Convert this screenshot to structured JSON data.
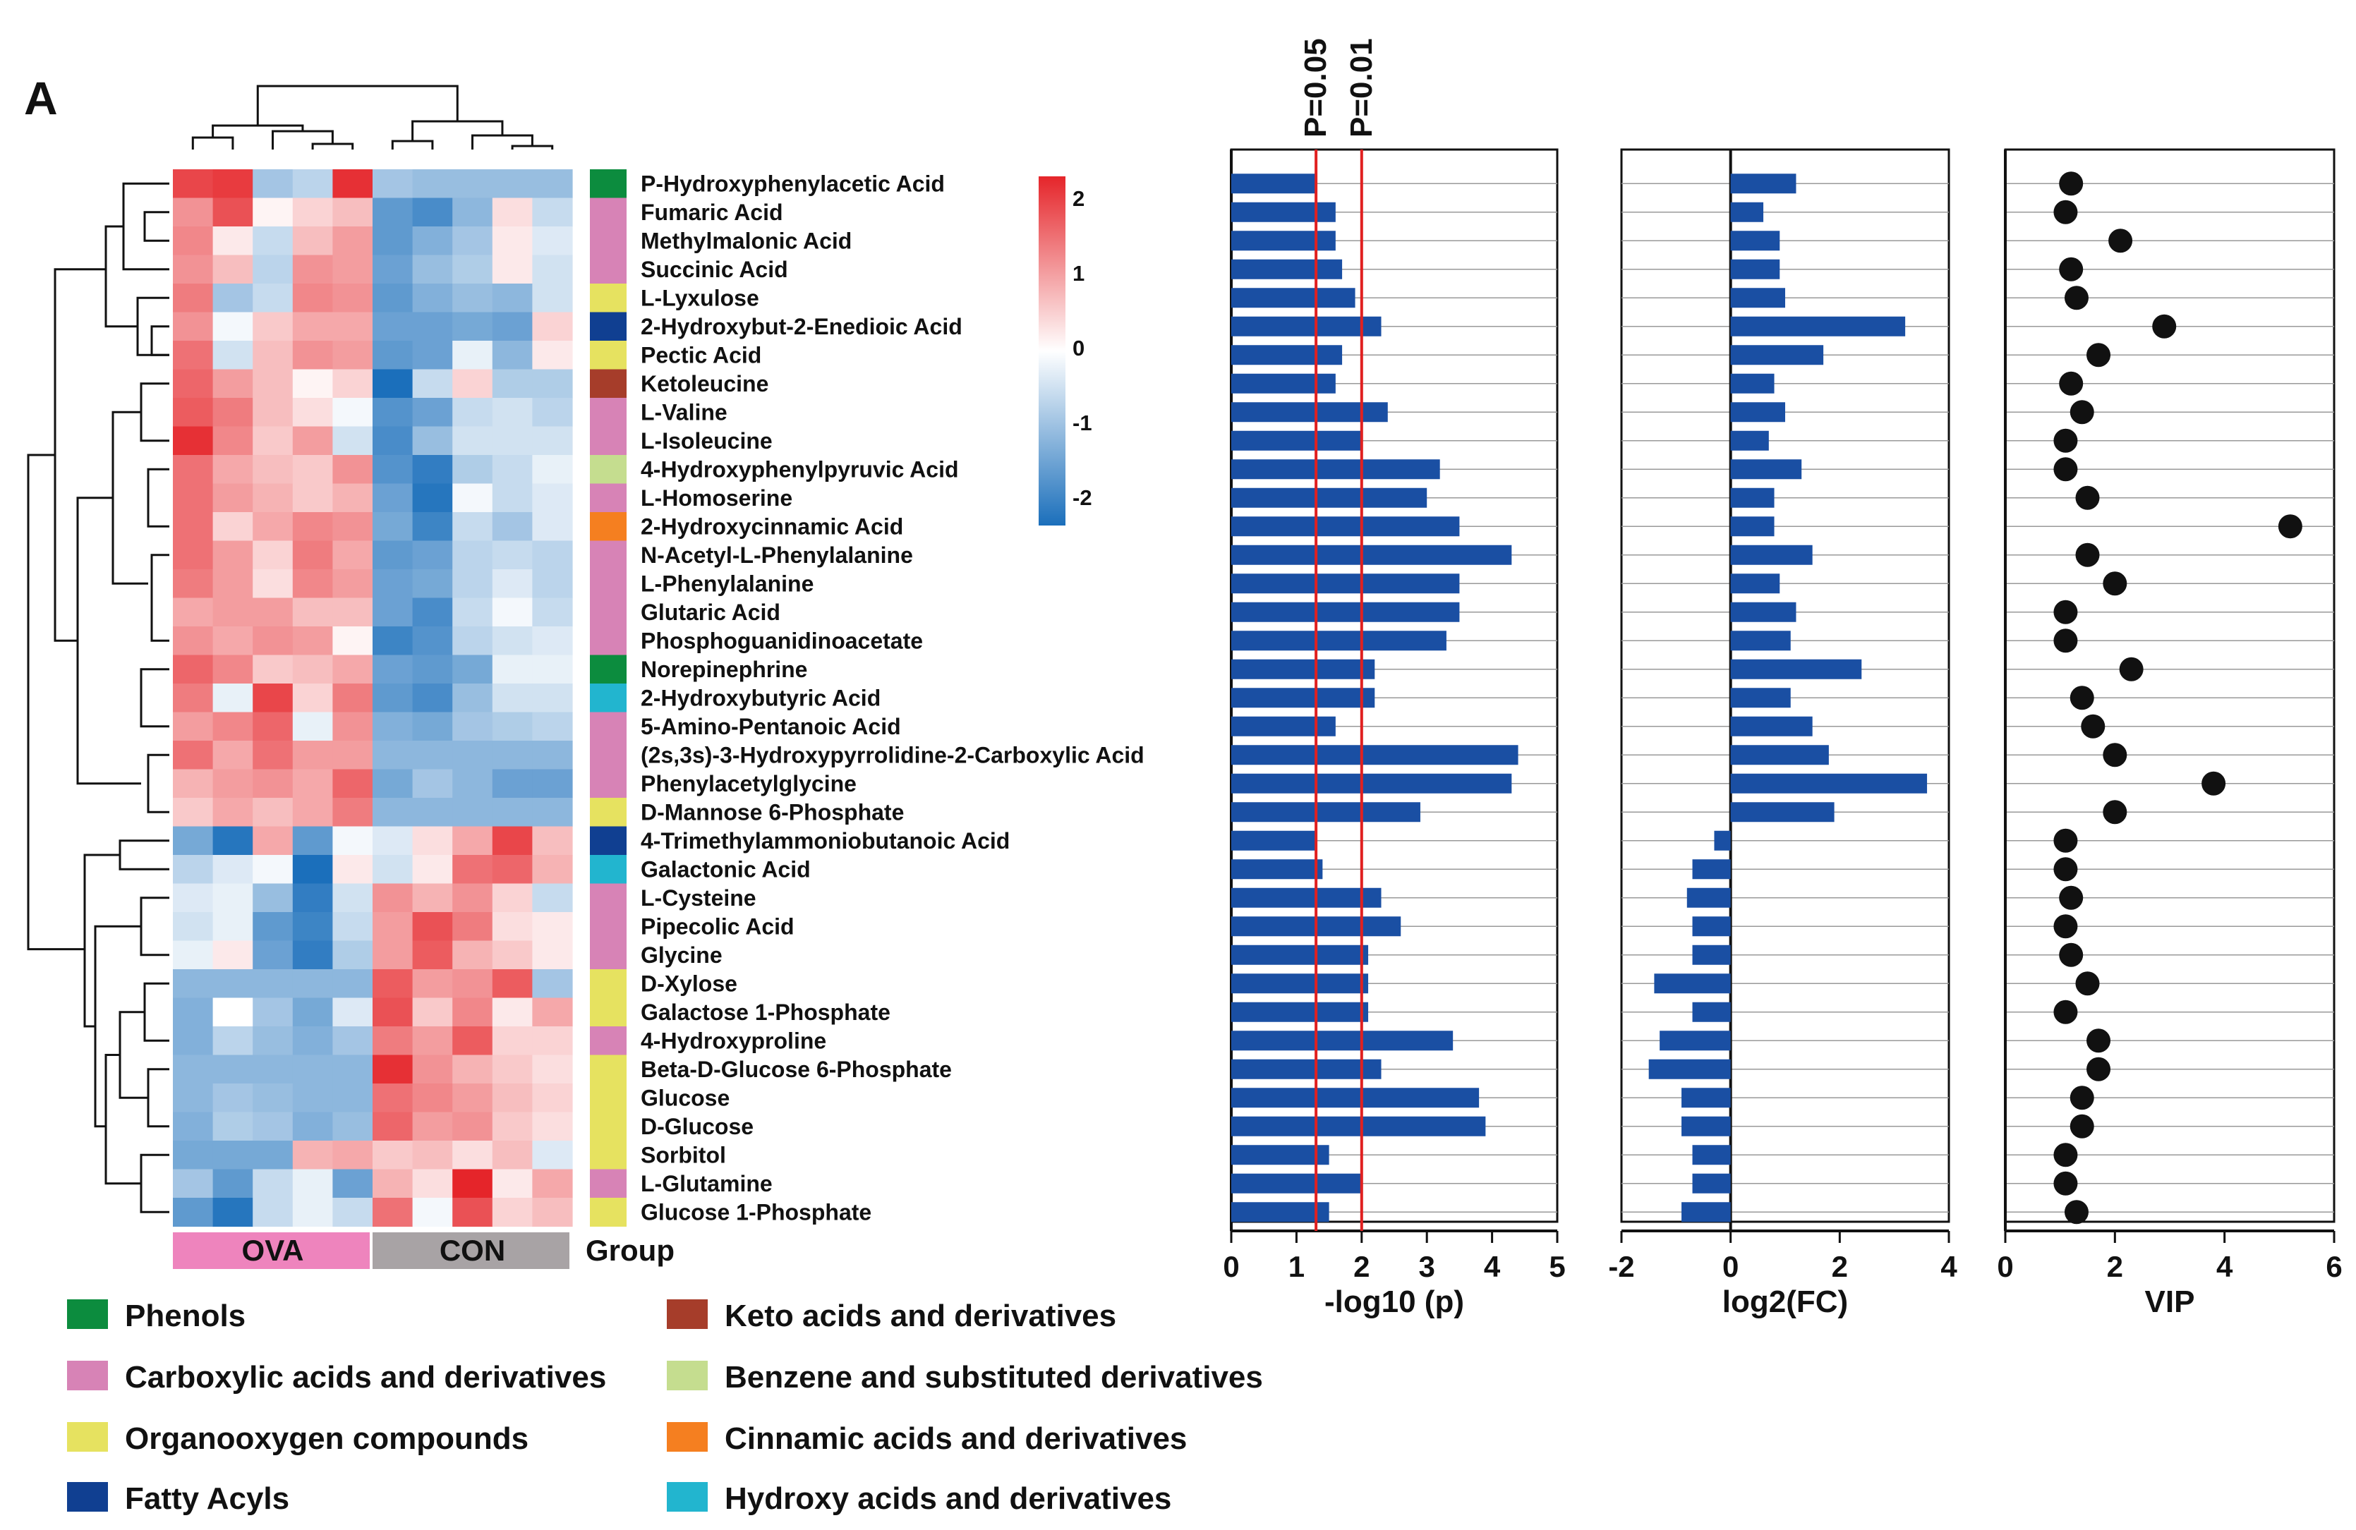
{
  "panel_label": "A",
  "metabolites": [
    "P-Hydroxyphenylacetic Acid",
    "Fumaric Acid",
    "Methylmalonic Acid",
    "Succinic Acid",
    "L-Lyxulose",
    "2-Hydroxybut-2-Enedioic Acid",
    "Pectic Acid",
    "Ketoleucine",
    "L-Valine",
    "L-Isoleucine",
    "4-Hydroxyphenylpyruvic Acid",
    "L-Homoserine",
    "2-Hydroxycinnamic Acid",
    "N-Acetyl-L-Phenylalanine",
    "L-Phenylalanine",
    "Glutaric Acid",
    "Phosphoguanidinoacetate",
    "Norepinephrine",
    "2-Hydroxybutyric Acid",
    "5-Amino-Pentanoic Acid",
    "(2s,3s)-3-Hydroxypyrrolidine-2-Carboxylic Acid",
    "Phenylacetylglycine",
    "D-Mannose 6-Phosphate",
    "4-Trimethylammoniobutanoic Acid",
    "Galactonic Acid",
    "L-Cysteine",
    "Pipecolic Acid",
    "Glycine",
    "D-Xylose",
    "Galactose 1-Phosphate",
    "4-Hydroxyproline",
    "Beta-D-Glucose 6-Phosphate",
    "Glucose",
    "D-Glucose",
    "Sorbitol",
    "L-Glutamine",
    "Glucose 1-Phosphate"
  ],
  "class_index": [
    0,
    1,
    1,
    1,
    2,
    3,
    2,
    4,
    1,
    1,
    5,
    1,
    6,
    1,
    1,
    1,
    1,
    0,
    7,
    1,
    1,
    1,
    2,
    3,
    7,
    1,
    1,
    1,
    2,
    2,
    1,
    2,
    2,
    2,
    2,
    1,
    2
  ],
  "legend": {
    "group_label": "Group",
    "classes": [
      {
        "name": "Phenols",
        "color": "#0c8c3e"
      },
      {
        "name": "Carboxylic acids and derivatives",
        "color": "#d783b6"
      },
      {
        "name": "Organooxygen compounds",
        "color": "#e6e260"
      },
      {
        "name": "Fatty Acyls",
        "color": "#103f91"
      },
      {
        "name": "Keto acids and derivatives",
        "color": "#a63d2a"
      },
      {
        "name": "Benzene and substituted derivatives",
        "color": "#c5dd8f"
      },
      {
        "name": "Cinnamic acids and derivatives",
        "color": "#f57f20"
      },
      {
        "name": "Hydroxy acids and derivatives",
        "color": "#22b5cf"
      }
    ]
  },
  "groups": [
    {
      "name": "OVA",
      "color": "#ee84bd"
    },
    {
      "name": "CON",
      "color": "#a8a3a5"
    }
  ],
  "chart_data": [
    {
      "type": "heatmap",
      "title": "",
      "columns_per_group": 5,
      "color_scale": {
        "min": -2,
        "max": 2,
        "ticks": [
          "2",
          "1",
          "0",
          "-1",
          "-2"
        ],
        "low_color": "#1b6fbb",
        "mid_color": "#ffffff",
        "high_color": "#e5252a"
      },
      "values": [
        [
          1.7,
          1.8,
          -0.8,
          -0.6,
          1.9,
          -0.8,
          -0.9,
          -0.9,
          -0.9,
          -0.9
        ],
        [
          1.0,
          1.6,
          0.1,
          0.4,
          0.6,
          -1.4,
          -1.6,
          -1.0,
          0.3,
          -0.5
        ],
        [
          1.1,
          0.2,
          -0.5,
          0.6,
          0.9,
          -1.4,
          -1.1,
          -0.8,
          0.2,
          -0.3
        ],
        [
          1.0,
          0.6,
          -0.6,
          1.0,
          0.9,
          -1.3,
          -0.9,
          -0.7,
          0.2,
          -0.4
        ],
        [
          1.2,
          -0.8,
          -0.5,
          1.1,
          1.0,
          -1.4,
          -1.1,
          -0.9,
          -1.0,
          -0.4
        ],
        [
          1.0,
          -0.1,
          0.5,
          0.8,
          0.8,
          -1.3,
          -1.3,
          -1.2,
          -1.3,
          0.4
        ],
        [
          1.3,
          -0.4,
          0.6,
          1.0,
          0.9,
          -1.4,
          -1.3,
          -0.2,
          -1.0,
          0.2
        ],
        [
          1.4,
          0.9,
          0.6,
          0.1,
          0.4,
          -2.0,
          -0.5,
          0.4,
          -0.7,
          -0.7
        ],
        [
          1.5,
          1.2,
          0.6,
          0.3,
          -0.1,
          -1.5,
          -1.3,
          -0.5,
          -0.4,
          -0.6
        ],
        [
          1.9,
          1.1,
          0.5,
          0.9,
          -0.4,
          -1.6,
          -0.9,
          -0.4,
          -0.4,
          -0.4
        ],
        [
          1.3,
          0.8,
          0.6,
          0.5,
          1.0,
          -1.5,
          -1.8,
          -0.7,
          -0.5,
          -0.2
        ],
        [
          1.3,
          0.9,
          0.7,
          0.5,
          0.7,
          -1.3,
          -1.9,
          -0.1,
          -0.5,
          -0.3
        ],
        [
          1.3,
          0.4,
          0.8,
          1.1,
          1.0,
          -1.2,
          -1.7,
          -0.5,
          -0.8,
          -0.3
        ],
        [
          1.3,
          0.9,
          0.4,
          1.2,
          0.8,
          -1.4,
          -1.3,
          -0.6,
          -0.5,
          -0.6
        ],
        [
          1.2,
          0.9,
          0.3,
          1.1,
          0.9,
          -1.3,
          -1.2,
          -0.6,
          -0.3,
          -0.6
        ],
        [
          0.8,
          0.9,
          0.9,
          0.6,
          0.6,
          -1.3,
          -1.6,
          -0.5,
          -0.1,
          -0.5
        ],
        [
          1.0,
          0.8,
          1.0,
          0.9,
          0.1,
          -1.7,
          -1.5,
          -0.6,
          -0.4,
          -0.3
        ],
        [
          1.4,
          1.1,
          0.5,
          0.6,
          0.8,
          -1.3,
          -1.4,
          -1.2,
          -0.2,
          -0.2
        ],
        [
          1.2,
          -0.2,
          1.7,
          0.4,
          1.2,
          -1.4,
          -1.6,
          -0.9,
          -0.4,
          -0.4
        ],
        [
          0.9,
          1.1,
          1.4,
          -0.2,
          1.0,
          -1.1,
          -1.2,
          -0.8,
          -0.7,
          -0.6
        ],
        [
          1.3,
          0.8,
          1.3,
          0.9,
          0.9,
          -1.0,
          -1.0,
          -1.0,
          -1.0,
          -1.0
        ],
        [
          0.7,
          0.9,
          1.0,
          0.8,
          1.4,
          -1.2,
          -0.8,
          -1.0,
          -1.3,
          -1.3
        ],
        [
          0.5,
          0.8,
          0.6,
          0.8,
          1.2,
          -1.0,
          -1.0,
          -1.0,
          -1.0,
          -1.0
        ],
        [
          -1.2,
          -1.9,
          0.8,
          -1.4,
          -0.1,
          -0.3,
          0.3,
          0.8,
          1.7,
          0.6
        ],
        [
          -0.6,
          -0.3,
          -0.1,
          -2.0,
          0.2,
          -0.4,
          0.2,
          1.3,
          1.4,
          0.7
        ],
        [
          -0.3,
          -0.2,
          -0.9,
          -1.8,
          -0.4,
          1.0,
          0.7,
          1.0,
          0.4,
          -0.5
        ],
        [
          -0.4,
          -0.2,
          -1.4,
          -1.7,
          -0.5,
          0.9,
          1.6,
          1.2,
          0.3,
          0.2
        ],
        [
          -0.2,
          0.2,
          -1.3,
          -1.8,
          -0.7,
          0.9,
          1.5,
          0.7,
          0.5,
          0.2
        ],
        [
          -1.0,
          -1.0,
          -1.0,
          -1.0,
          -1.0,
          1.5,
          0.9,
          1.0,
          1.5,
          -0.8
        ],
        [
          -1.1,
          0.0,
          -0.8,
          -1.2,
          -0.3,
          1.6,
          0.5,
          1.1,
          0.2,
          0.8
        ],
        [
          -1.1,
          -0.6,
          -0.9,
          -1.1,
          -0.8,
          1.2,
          0.9,
          1.5,
          0.4,
          0.4
        ],
        [
          -1.0,
          -1.0,
          -1.0,
          -1.0,
          -1.0,
          1.9,
          1.0,
          0.7,
          0.5,
          0.3
        ],
        [
          -1.0,
          -0.8,
          -0.9,
          -1.0,
          -1.0,
          1.3,
          1.1,
          0.9,
          0.6,
          0.4
        ],
        [
          -1.1,
          -0.7,
          -0.8,
          -1.1,
          -0.9,
          1.4,
          0.9,
          1.0,
          0.5,
          0.3
        ],
        [
          -1.2,
          -1.2,
          -1.2,
          0.7,
          0.8,
          0.5,
          0.6,
          0.3,
          0.6,
          -0.3
        ],
        [
          -0.8,
          -1.4,
          -0.5,
          -0.2,
          -1.3,
          0.7,
          0.3,
          2.0,
          0.2,
          0.8
        ],
        [
          -1.4,
          -1.9,
          -0.5,
          -0.2,
          -0.5,
          1.3,
          -0.1,
          1.6,
          0.4,
          0.6
        ]
      ]
    },
    {
      "type": "bar",
      "orientation": "horizontal",
      "xlabel": "-log10 (p)",
      "xlim": [
        0,
        5
      ],
      "xticks": [
        "0",
        "1",
        "2",
        "3",
        "4",
        "5"
      ],
      "reference_lines": [
        {
          "value": 1.3,
          "label": "P=0.05"
        },
        {
          "value": 2.0,
          "label": "P=0.01"
        }
      ],
      "values": [
        1.3,
        1.6,
        1.6,
        1.7,
        1.9,
        2.3,
        1.7,
        1.6,
        2.4,
        2.0,
        3.2,
        3.0,
        3.5,
        4.3,
        3.5,
        3.5,
        3.3,
        2.2,
        2.2,
        1.6,
        4.4,
        4.3,
        2.9,
        1.3,
        1.4,
        2.3,
        2.6,
        2.1,
        2.1,
        2.1,
        3.4,
        2.3,
        3.8,
        3.9,
        1.5,
        2.0,
        1.5
      ]
    },
    {
      "type": "bar",
      "orientation": "horizontal",
      "xlabel": "log2(FC)",
      "xlim": [
        -2,
        4
      ],
      "xticks": [
        "-2",
        "0",
        "2",
        "4"
      ],
      "values": [
        1.2,
        0.6,
        0.9,
        0.9,
        1.0,
        3.2,
        1.7,
        0.8,
        1.0,
        0.7,
        1.3,
        0.8,
        0.8,
        1.5,
        0.9,
        1.2,
        1.1,
        2.4,
        1.1,
        1.5,
        1.8,
        3.6,
        1.9,
        -0.3,
        -0.7,
        -0.8,
        -0.7,
        -0.7,
        -1.4,
        -0.7,
        -1.3,
        -1.5,
        -0.9,
        -0.9,
        -0.7,
        -0.7,
        -0.9
      ]
    },
    {
      "type": "scatter",
      "xlabel": "VIP",
      "xlim": [
        0,
        6
      ],
      "xticks": [
        "0",
        "2",
        "4",
        "6"
      ],
      "values": [
        1.2,
        1.1,
        2.1,
        1.2,
        1.3,
        2.9,
        1.7,
        1.2,
        1.4,
        1.1,
        1.1,
        1.5,
        5.2,
        1.5,
        2.0,
        1.1,
        1.1,
        2.3,
        1.4,
        1.6,
        2.0,
        3.8,
        2.0,
        1.1,
        1.1,
        1.2,
        1.1,
        1.2,
        1.5,
        1.1,
        1.7,
        1.7,
        1.4,
        1.4,
        1.1,
        1.1,
        1.3
      ]
    }
  ]
}
